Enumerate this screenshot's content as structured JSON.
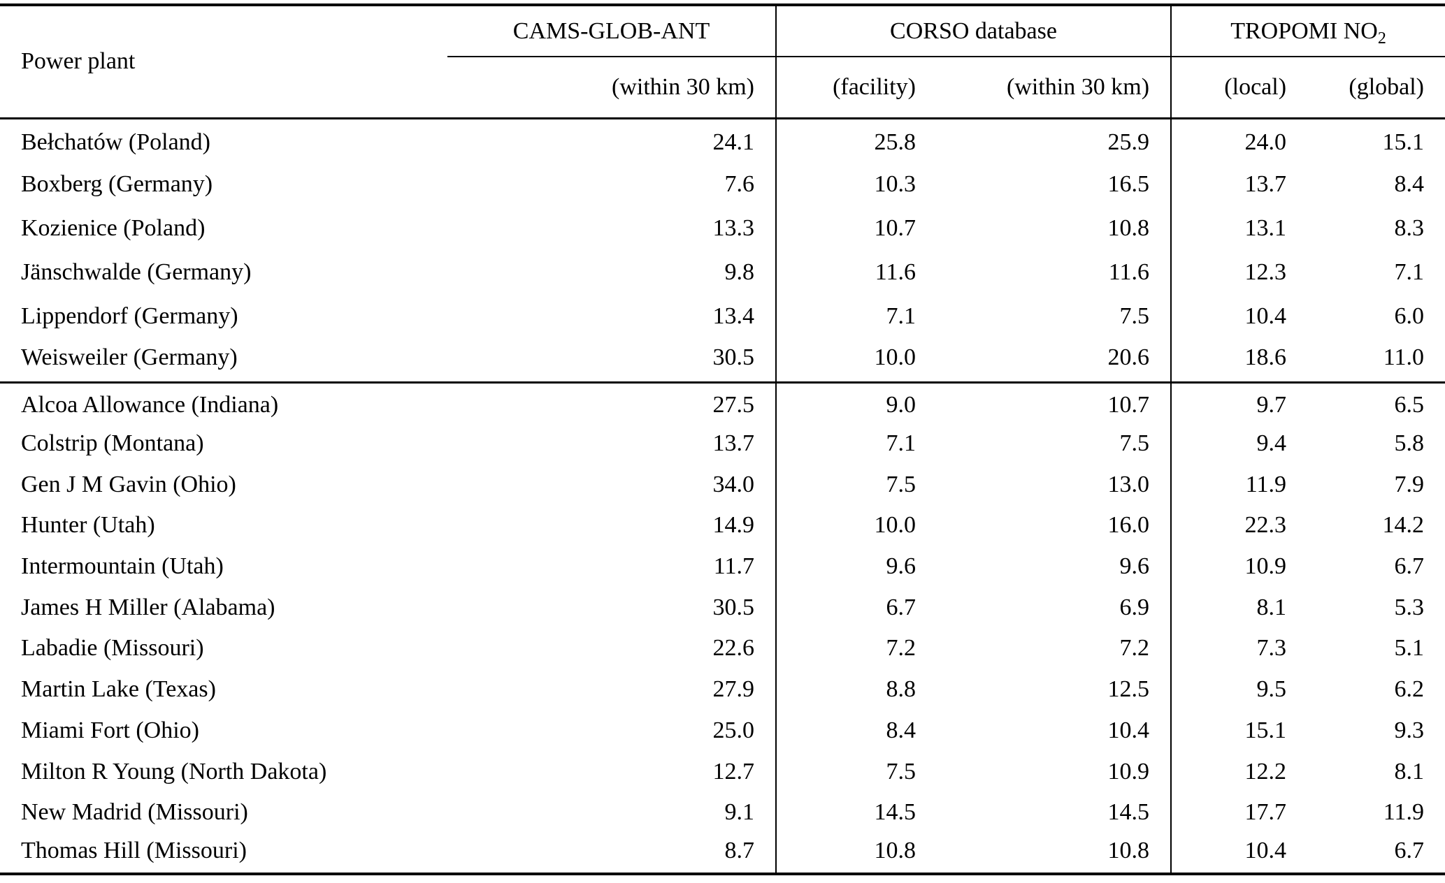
{
  "table": {
    "header": {
      "plant_col": "Power plant",
      "cams_group": "CAMS-GLOB-ANT",
      "corso_group": "CORSO database",
      "tropomi_group": "TROPOMI NO",
      "tropomi_group_sub": "2"
    },
    "subheader": {
      "cams_30km": "(within 30 km)",
      "corso_facility": "(facility)",
      "corso_30km": "(within 30 km)",
      "tropomi_local": "(local)",
      "tropomi_global": "(global)"
    },
    "groups": [
      {
        "region": "europe",
        "rows": [
          {
            "name": "Bełchatów (Poland)",
            "values": [
              "24.1",
              "25.8",
              "25.9",
              "24.0",
              "15.1"
            ]
          },
          {
            "name": "Boxberg (Germany)",
            "values": [
              "7.6",
              "10.3",
              "16.5",
              "13.7",
              "8.4"
            ]
          },
          {
            "name": "Kozienice (Poland)",
            "values": [
              "13.3",
              "10.7",
              "10.8",
              "13.1",
              "8.3"
            ]
          },
          {
            "name": "Jänschwalde (Germany)",
            "values": [
              "9.8",
              "11.6",
              "11.6",
              "12.3",
              "7.1"
            ]
          },
          {
            "name": "Lippendorf (Germany)",
            "values": [
              "13.4",
              "7.1",
              "7.5",
              "10.4",
              "6.0"
            ]
          },
          {
            "name": "Weisweiler (Germany)",
            "values": [
              "30.5",
              "10.0",
              "20.6",
              "18.6",
              "11.0"
            ]
          }
        ]
      },
      {
        "region": "usa",
        "rows": [
          {
            "name": "Alcoa Allowance (Indiana)",
            "values": [
              "27.5",
              "9.0",
              "10.7",
              "9.7",
              "6.5"
            ]
          },
          {
            "name": "Colstrip (Montana)",
            "values": [
              "13.7",
              "7.1",
              "7.5",
              "9.4",
              "5.8"
            ]
          },
          {
            "name": "Gen J M Gavin (Ohio)",
            "values": [
              "34.0",
              "7.5",
              "13.0",
              "11.9",
              "7.9"
            ]
          },
          {
            "name": "Hunter (Utah)",
            "values": [
              "14.9",
              "10.0",
              "16.0",
              "22.3",
              "14.2"
            ]
          },
          {
            "name": "Intermountain (Utah)",
            "values": [
              "11.7",
              "9.6",
              "9.6",
              "10.9",
              "6.7"
            ]
          },
          {
            "name": "James H Miller (Alabama)",
            "values": [
              "30.5",
              "6.7",
              "6.9",
              "8.1",
              "5.3"
            ]
          },
          {
            "name": "Labadie (Missouri)",
            "values": [
              "22.6",
              "7.2",
              "7.2",
              "7.3",
              "5.1"
            ]
          },
          {
            "name": "Martin Lake (Texas)",
            "values": [
              "27.9",
              "8.8",
              "12.5",
              "9.5",
              "6.2"
            ]
          },
          {
            "name": "Miami Fort (Ohio)",
            "values": [
              "25.0",
              "8.4",
              "10.4",
              "15.1",
              "9.3"
            ]
          },
          {
            "name": "Milton R Young (North Dakota)",
            "values": [
              "12.7",
              "7.5",
              "10.9",
              "12.2",
              "8.1"
            ]
          },
          {
            "name": "New Madrid (Missouri)",
            "values": [
              "9.1",
              "14.5",
              "14.5",
              "17.7",
              "11.9"
            ]
          },
          {
            "name": "Thomas Hill (Missouri)",
            "values": [
              "8.7",
              "10.8",
              "10.8",
              "10.4",
              "6.7"
            ]
          }
        ]
      }
    ]
  }
}
